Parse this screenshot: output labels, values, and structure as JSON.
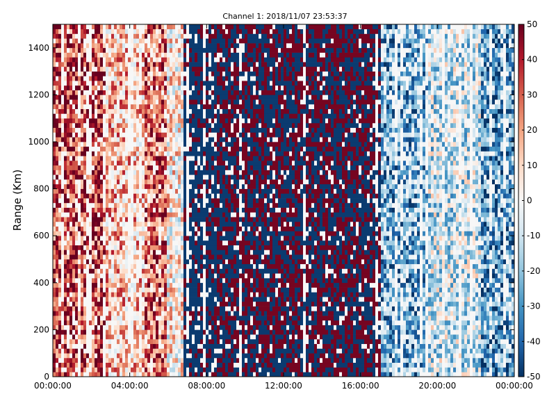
{
  "chart_data": {
    "type": "heatmap",
    "title": "Channel 1: 2018/11/07 23:53:37",
    "ylabel": "Range (Km)",
    "xlabel": "",
    "x_ticks": [
      "00:00:00",
      "04:00:00",
      "08:00:00",
      "12:00:00",
      "16:00:00",
      "20:00:00",
      "00:00:00"
    ],
    "x_tick_hours": [
      0,
      4,
      8,
      12,
      16,
      20,
      24
    ],
    "xlim_hours": [
      0,
      24
    ],
    "y_ticks": [
      0,
      200,
      400,
      600,
      800,
      1000,
      1200,
      1400
    ],
    "ylim": [
      0,
      1500
    ],
    "colorbar": {
      "colormap": "RdBu_r",
      "vmin": -50,
      "vmax": 50,
      "ticks": [
        50,
        40,
        30,
        20,
        10,
        0,
        -10,
        -20,
        -30,
        -40,
        -50
      ]
    },
    "regions": [
      {
        "hours": [
          0.0,
          2.8
        ],
        "pattern": "mostly positive, red to dark red",
        "approx_value": 35
      },
      {
        "hours": [
          2.8,
          4.8
        ],
        "pattern": "mixed light red / white",
        "approx_value": 15
      },
      {
        "hours": [
          4.8,
          5.9
        ],
        "pattern": "red band",
        "approx_value": 30
      },
      {
        "hours": [
          5.9,
          6.8
        ],
        "pattern": "mixed light / white",
        "approx_value": 5
      },
      {
        "hours": [
          6.8,
          8.5
        ],
        "pattern": "noisy, mostly dark blue",
        "approx_value": -40
      },
      {
        "hours": [
          8.5,
          17.0
        ],
        "pattern": "noisy saturated, dark red and dark blue",
        "approx_value": 0
      },
      {
        "hours": [
          17.0,
          19.5
        ],
        "pattern": "light blue band",
        "approx_value": -25
      },
      {
        "hours": [
          19.5,
          22.2
        ],
        "pattern": "mixed white / light blue",
        "approx_value": -10
      },
      {
        "hours": [
          22.2,
          24.0
        ],
        "pattern": "blue band",
        "approx_value": -30
      }
    ]
  }
}
